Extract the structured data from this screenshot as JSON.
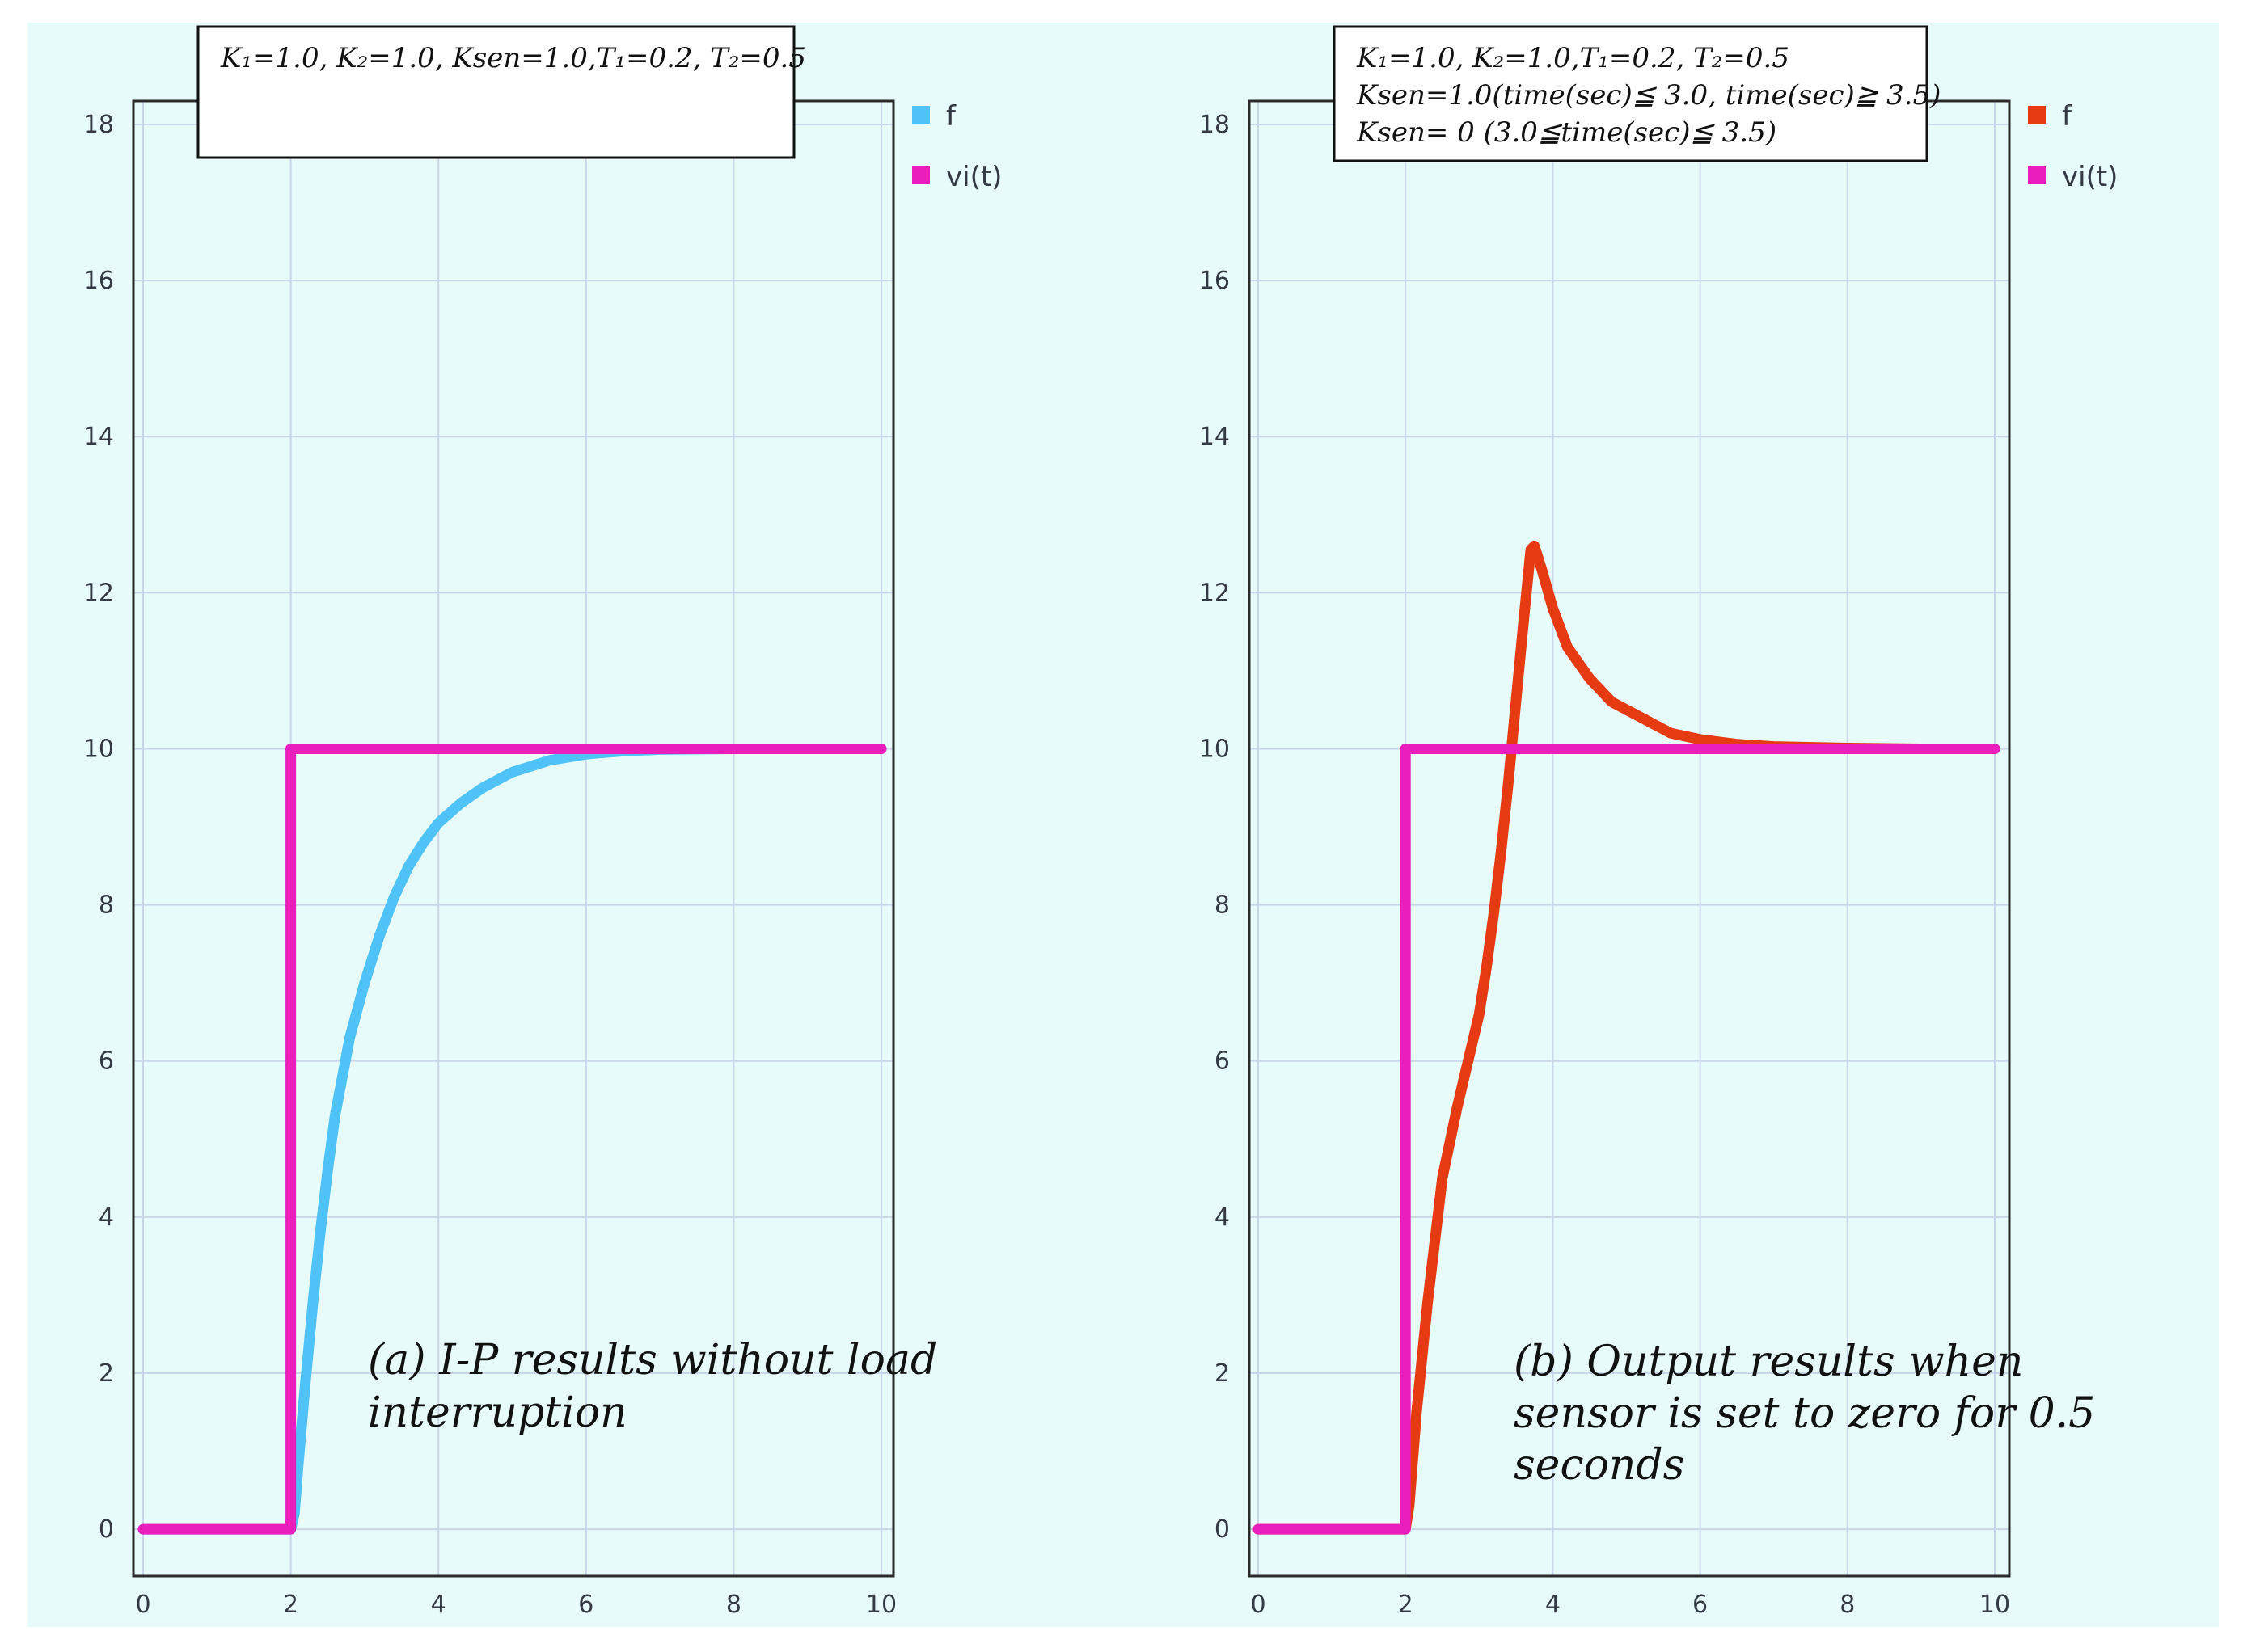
{
  "chart_data": [
    {
      "type": "line",
      "panel": "a",
      "title": "",
      "xlim": [
        0,
        10
      ],
      "ylim": [
        -0.6,
        18.3
      ],
      "xticks": [
        0,
        2,
        4,
        6,
        8,
        10
      ],
      "yticks": [
        0,
        2,
        4,
        6,
        8,
        10,
        12,
        14,
        16,
        18
      ],
      "grid": true,
      "legend_position": "right",
      "parameters": [
        "K₁=1.0, K₂=1.0, Ksen=1.0,T₁=0.2, T₂=0.5"
      ],
      "caption": [
        "(a)  I-P results without load",
        "interruption"
      ],
      "series": [
        {
          "name": "f",
          "color": "#4fc3f7",
          "x": [
            0,
            2.0,
            2.05,
            2.1,
            2.2,
            2.3,
            2.4,
            2.5,
            2.6,
            2.8,
            3.0,
            3.2,
            3.4,
            3.6,
            3.8,
            4.0,
            4.3,
            4.6,
            5.0,
            5.5,
            6.0,
            6.5,
            7.0,
            8.0,
            9.0,
            10.0
          ],
          "values": [
            0,
            0,
            0.2,
            0.8,
            1.9,
            2.9,
            3.8,
            4.6,
            5.3,
            6.3,
            7.0,
            7.6,
            8.1,
            8.5,
            8.8,
            9.05,
            9.3,
            9.5,
            9.7,
            9.85,
            9.93,
            9.97,
            9.99,
            10.0,
            10.0,
            10.0
          ]
        },
        {
          "name": "vi(t)",
          "color": "#e91ebc",
          "x": [
            0,
            2,
            2,
            10
          ],
          "values": [
            0,
            0,
            10,
            10
          ]
        }
      ]
    },
    {
      "type": "line",
      "panel": "b",
      "title": "",
      "xlim": [
        0,
        10
      ],
      "ylim": [
        -0.6,
        18.3
      ],
      "xticks": [
        0,
        2,
        4,
        6,
        8,
        10
      ],
      "yticks": [
        0,
        2,
        4,
        6,
        8,
        10,
        12,
        14,
        16,
        18
      ],
      "grid": true,
      "legend_position": "right",
      "parameters": [
        "K₁=1.0, K₂=1.0,T₁=0.2, T₂=0.5",
        "Ksen=1.0(time(sec)≦ 3.0, time(sec)≧ 3.5)",
        "Ksen= 0 (3.0≦time(sec)≦ 3.5)"
      ],
      "caption": [
        "(b) Output results when",
        "sensor is set to zero for 0.5",
        "seconds"
      ],
      "series": [
        {
          "name": "f",
          "color": "#e53a12",
          "x": [
            0,
            2.0,
            2.05,
            2.15,
            2.3,
            2.5,
            2.7,
            2.9,
            3.0,
            3.1,
            3.2,
            3.3,
            3.4,
            3.5,
            3.6,
            3.7,
            3.75,
            3.85,
            4.0,
            4.2,
            4.5,
            4.8,
            5.2,
            5.6,
            6.0,
            6.5,
            7.0,
            8.0,
            9.0,
            10.0
          ],
          "values": [
            0,
            0,
            0.3,
            1.5,
            2.9,
            4.5,
            5.4,
            6.2,
            6.6,
            7.2,
            7.9,
            8.7,
            9.6,
            10.6,
            11.6,
            12.55,
            12.6,
            12.3,
            11.8,
            11.3,
            10.9,
            10.6,
            10.4,
            10.2,
            10.12,
            10.06,
            10.03,
            10.01,
            10.0,
            10.0
          ]
        },
        {
          "name": "vi(t)",
          "color": "#e91ebc",
          "x": [
            0,
            2,
            2,
            10
          ],
          "values": [
            0,
            0,
            10,
            10
          ]
        }
      ]
    }
  ]
}
